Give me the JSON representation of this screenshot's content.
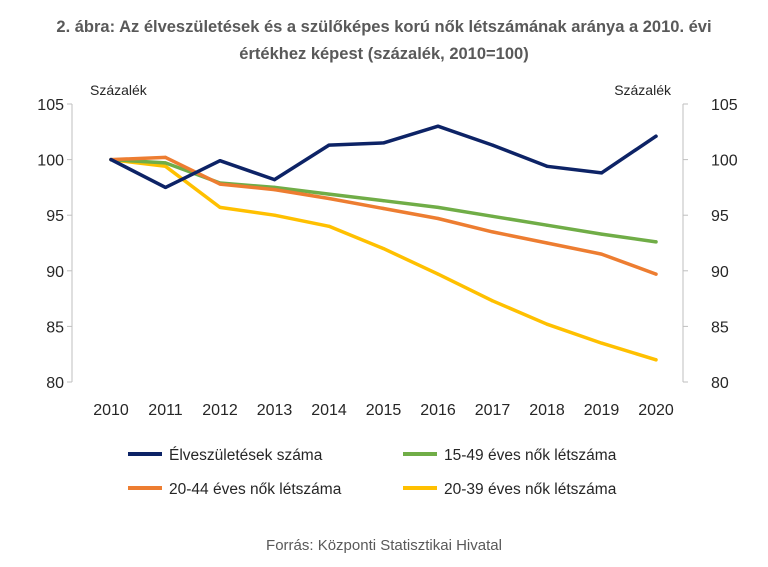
{
  "title": {
    "line1": "2. ábra: Az élveszületések és a szülőképes korú nők létszámának aránya a 2010. évi",
    "line2": "értékhez képest (százalék, 2010=100)"
  },
  "source": "Forrás: Központi Statisztikai Hivatal",
  "chart_data": {
    "type": "line",
    "x": [
      "2010",
      "2011",
      "2012",
      "2013",
      "2014",
      "2015",
      "2016",
      "2017",
      "2018",
      "2019",
      "2020"
    ],
    "ylabel_left": "Százalék",
    "ylabel_right": "Százalék",
    "ylim": [
      80,
      105
    ],
    "yticks": [
      "80",
      "85",
      "90",
      "95",
      "100",
      "105"
    ],
    "grid": false,
    "legend_position": "bottom",
    "series": [
      {
        "name": "Élveszületések száma",
        "color": "#0d2366",
        "values": [
          100,
          97.5,
          99.9,
          98.2,
          101.3,
          101.5,
          103.0,
          101.3,
          99.4,
          98.8,
          102.1
        ]
      },
      {
        "name": "15-49 éves nők létszáma",
        "color": "#70ad47",
        "values": [
          100,
          99.7,
          97.9,
          97.5,
          96.9,
          96.3,
          95.7,
          94.9,
          94.1,
          93.3,
          92.6
        ]
      },
      {
        "name": "20-44 éves nők létszáma",
        "color": "#ed7d31",
        "values": [
          100,
          100.2,
          97.8,
          97.3,
          96.5,
          95.6,
          94.7,
          93.5,
          92.5,
          91.5,
          89.7
        ]
      },
      {
        "name": "20-39 éves nők létszáma",
        "color": "#ffc000",
        "values": [
          100,
          99.4,
          95.7,
          95.0,
          94.0,
          92.0,
          89.7,
          87.3,
          85.2,
          83.5,
          82.0
        ]
      }
    ]
  }
}
